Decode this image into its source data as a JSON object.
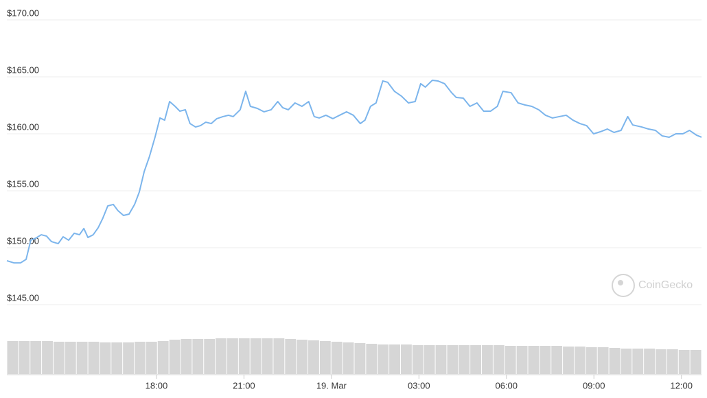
{
  "chart_data": [
    {
      "type": "line",
      "x": [
        12.87,
        13.11,
        13.34,
        13.53,
        13.69,
        13.86,
        14.05,
        14.23,
        14.4,
        14.63,
        14.8,
        14.99,
        15.18,
        15.36,
        15.51,
        15.65,
        15.83,
        16.0,
        16.16,
        16.33,
        16.52,
        16.68,
        16.87,
        17.06,
        17.25,
        17.41,
        17.58,
        17.76,
        17.95,
        18.12,
        18.28,
        18.45,
        18.64,
        18.8,
        18.99,
        19.15,
        19.34,
        19.51,
        19.69,
        19.88,
        20.07,
        20.28,
        20.47,
        20.63,
        20.87,
        21.06,
        21.22,
        21.46,
        21.69,
        21.93,
        22.16,
        22.33,
        22.52,
        22.75,
        22.99,
        23.22,
        23.41,
        23.58,
        23.81,
        24.05,
        24.28,
        24.52,
        24.75,
        24.99,
        25.15,
        25.34,
        25.53,
        25.76,
        25.93,
        26.16,
        26.4,
        26.64,
        26.87,
        27.06,
        27.22,
        27.46,
        27.65,
        27.88,
        28.12,
        28.28,
        28.52,
        28.75,
        28.99,
        29.22,
        29.46,
        29.69,
        29.88,
        30.16,
        30.4,
        30.64,
        30.87,
        31.11,
        31.34,
        31.58,
        31.81,
        32.05,
        32.28,
        32.52,
        32.75,
        32.99,
        33.22,
        33.46,
        33.69,
        33.93,
        34.16,
        34.33,
        34.64,
        34.87,
        35.11,
        35.34,
        35.58,
        35.81,
        36.05,
        36.28,
        36.52,
        36.69
      ],
      "series": [
        {
          "color": "#7cb5ec",
          "values": [
            148.86,
            148.67,
            148.67,
            148.98,
            150.66,
            150.84,
            151.14,
            151.02,
            150.54,
            150.36,
            150.96,
            150.66,
            151.27,
            151.14,
            151.69,
            150.9,
            151.14,
            151.75,
            152.59,
            153.67,
            153.8,
            153.25,
            152.83,
            152.95,
            153.8,
            154.88,
            156.69,
            158.01,
            159.7,
            161.39,
            161.2,
            162.83,
            162.41,
            161.99,
            162.11,
            160.9,
            160.6,
            160.72,
            161.02,
            160.9,
            161.33,
            161.51,
            161.63,
            161.51,
            162.11,
            163.73,
            162.41,
            162.23,
            161.93,
            162.11,
            162.83,
            162.29,
            162.11,
            162.71,
            162.41,
            162.83,
            161.51,
            161.39,
            161.63,
            161.33,
            161.63,
            161.93,
            161.63,
            160.9,
            161.2,
            162.41,
            162.71,
            164.64,
            164.52,
            163.73,
            163.31,
            162.71,
            162.83,
            164.4,
            164.1,
            164.7,
            164.64,
            164.4,
            163.61,
            163.19,
            163.13,
            162.41,
            162.71,
            161.99,
            161.99,
            162.41,
            163.73,
            163.61,
            162.71,
            162.53,
            162.41,
            162.11,
            161.63,
            161.39,
            161.51,
            161.63,
            161.2,
            160.9,
            160.72,
            160.0,
            160.18,
            160.42,
            160.12,
            160.3,
            161.51,
            160.78,
            160.6,
            160.42,
            160.3,
            159.82,
            159.7,
            160.0,
            160.0,
            160.3,
            159.88,
            159.7
          ]
        }
      ],
      "xlim": [
        12.87,
        36.69
      ],
      "xticks": [
        {
          "value": 18,
          "label": "18:00"
        },
        {
          "value": 21,
          "label": "21:00"
        },
        {
          "value": 24,
          "label": "19. Mar"
        },
        {
          "value": 27,
          "label": "03:00"
        },
        {
          "value": 30,
          "label": "06:00"
        },
        {
          "value": 33,
          "label": "09:00"
        },
        {
          "value": 36,
          "label": "12:00"
        }
      ],
      "ylim": [
        145,
        170
      ],
      "yticks": [
        {
          "value": 145,
          "label": "$145.00"
        },
        {
          "value": 150,
          "label": "$150.00"
        },
        {
          "value": 155,
          "label": "$155.00"
        },
        {
          "value": 160,
          "label": "$160.00"
        },
        {
          "value": 165,
          "label": "$165.00"
        },
        {
          "value": 170,
          "label": "$170.00"
        }
      ],
      "grid": true,
      "watermark": "CoinGecko"
    },
    {
      "type": "bar",
      "color": "#d6d6d6",
      "ylim": [
        0,
        100
      ],
      "values": [
        48,
        48,
        48,
        48,
        47,
        47,
        47,
        47,
        46,
        46,
        46,
        47,
        47,
        48,
        50,
        51,
        51,
        51,
        52,
        52,
        52,
        52,
        52,
        52,
        51,
        50,
        49,
        48,
        47,
        46,
        45,
        44,
        43,
        43,
        43,
        42,
        42,
        42,
        42,
        42,
        42,
        42,
        42,
        41,
        41,
        41,
        41,
        41,
        40,
        40,
        39,
        39,
        38,
        37,
        37,
        37,
        36,
        36,
        35,
        35
      ]
    }
  ]
}
